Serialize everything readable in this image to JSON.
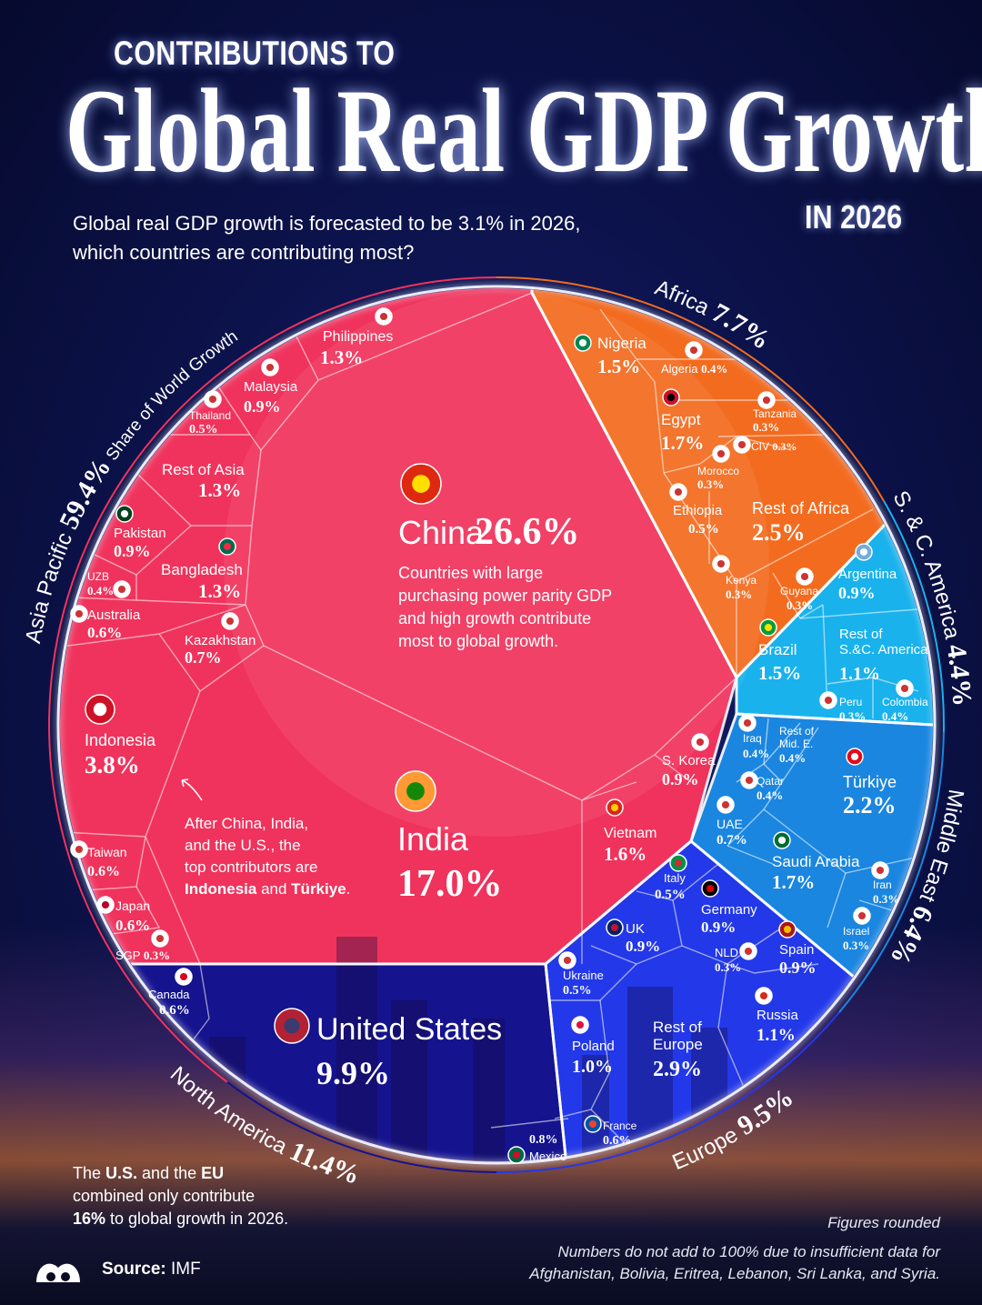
{
  "header": {
    "kicker": "CONTRIBUTIONS TO",
    "title": "Global Real GDP Growth",
    "year": "IN 2026",
    "subtitle_line1": "Global real GDP growth is forecasted to be 3.1% in 2026,",
    "subtitle_line2": "which countries are contributing most?"
  },
  "chart_data": {
    "type": "treemap",
    "subtype": "voronoi",
    "unit": "% share of world growth",
    "regions": [
      {
        "id": "asia",
        "name": "Asia Pacific",
        "value": "59.4%",
        "suffix": "Share of World Growth",
        "color": "#f0335c"
      },
      {
        "id": "africa",
        "name": "Africa",
        "value": "7.7%",
        "color": "#f36b1f"
      },
      {
        "id": "sca",
        "name": "S. & C. America",
        "value": "4.4%",
        "color": "#19b2ec"
      },
      {
        "id": "me",
        "name": "Middle East",
        "value": "6.4%",
        "color": "#1a86e0"
      },
      {
        "id": "europe",
        "name": "Europe",
        "value": "9.5%",
        "color": "#2338e8"
      },
      {
        "id": "na",
        "name": "North America",
        "value": "11.4%",
        "color": "#15138e"
      }
    ],
    "countries": [
      {
        "id": "china",
        "region": "asia",
        "name": "China",
        "value": 26.6
      },
      {
        "id": "india",
        "region": "asia",
        "name": "India",
        "value": 17.0
      },
      {
        "id": "indonesia",
        "region": "asia",
        "name": "Indonesia",
        "value": 3.8
      },
      {
        "id": "vietnam",
        "region": "asia",
        "name": "Vietnam",
        "value": 1.6
      },
      {
        "id": "philippines",
        "region": "asia",
        "name": "Philippines",
        "value": 1.3
      },
      {
        "id": "rest_asia",
        "region": "asia",
        "name": "Rest of Asia",
        "value": 1.3
      },
      {
        "id": "bangladesh",
        "region": "asia",
        "name": "Bangladesh",
        "value": 1.3
      },
      {
        "id": "malaysia",
        "region": "asia",
        "name": "Malaysia",
        "value": 0.9
      },
      {
        "id": "pakistan",
        "region": "asia",
        "name": "Pakistan",
        "value": 0.9
      },
      {
        "id": "skorea",
        "region": "asia",
        "name": "S. Korea",
        "value": 0.9
      },
      {
        "id": "kazakhstan",
        "region": "asia",
        "name": "Kazakhstan",
        "value": 0.7
      },
      {
        "id": "australia",
        "region": "asia",
        "name": "Australia",
        "value": 0.6
      },
      {
        "id": "taiwan",
        "region": "asia",
        "name": "Taiwan",
        "value": 0.6
      },
      {
        "id": "japan",
        "region": "asia",
        "name": "Japan",
        "value": 0.6
      },
      {
        "id": "thailand",
        "region": "asia",
        "name": "Thailand",
        "value": 0.5
      },
      {
        "id": "uzb",
        "region": "asia",
        "name": "UZB",
        "value": 0.4
      },
      {
        "id": "sgp",
        "region": "asia",
        "name": "SGP",
        "value": 0.3
      },
      {
        "id": "nigeria",
        "region": "africa",
        "name": "Nigeria",
        "value": 1.5
      },
      {
        "id": "algeria",
        "region": "africa",
        "name": "Algeria",
        "value": 0.4
      },
      {
        "id": "egypt",
        "region": "africa",
        "name": "Egypt",
        "value": 1.7
      },
      {
        "id": "tanzania",
        "region": "africa",
        "name": "Tanzania",
        "value": 0.3
      },
      {
        "id": "civ",
        "region": "africa",
        "name": "CIV",
        "value": 0.3
      },
      {
        "id": "morocco",
        "region": "africa",
        "name": "Morocco",
        "value": 0.3
      },
      {
        "id": "ethiopia",
        "region": "africa",
        "name": "Ethiopia",
        "value": 0.5
      },
      {
        "id": "rest_africa",
        "region": "africa",
        "name": "Rest of Africa",
        "value": 2.5
      },
      {
        "id": "kenya",
        "region": "africa",
        "name": "Kenya",
        "value": 0.3
      },
      {
        "id": "guyana",
        "region": "sca",
        "name": "Guyana",
        "value": 0.3
      },
      {
        "id": "argentina",
        "region": "sca",
        "name": "Argentina",
        "value": 0.9
      },
      {
        "id": "brazil",
        "region": "sca",
        "name": "Brazil",
        "value": 1.5
      },
      {
        "id": "rest_sca",
        "region": "sca",
        "name": "Rest of S.&C. America",
        "value": 1.1
      },
      {
        "id": "peru",
        "region": "sca",
        "name": "Peru",
        "value": 0.3
      },
      {
        "id": "colombia",
        "region": "sca",
        "name": "Colombia",
        "value": 0.4
      },
      {
        "id": "iraq",
        "region": "me",
        "name": "Iraq",
        "value": 0.4
      },
      {
        "id": "rest_me",
        "region": "me",
        "name": "Rest of Mid. E.",
        "value": 0.4
      },
      {
        "id": "qatar",
        "region": "me",
        "name": "Qatar",
        "value": 0.4
      },
      {
        "id": "turkiye",
        "region": "me",
        "name": "Türkiye",
        "value": 2.2
      },
      {
        "id": "uae",
        "region": "me",
        "name": "UAE",
        "value": 0.7
      },
      {
        "id": "saudi",
        "region": "me",
        "name": "Saudi Arabia",
        "value": 1.7
      },
      {
        "id": "iran",
        "region": "me",
        "name": "Iran",
        "value": 0.3
      },
      {
        "id": "israel",
        "region": "me",
        "name": "Israel",
        "value": 0.3
      },
      {
        "id": "italy",
        "region": "europe",
        "name": "Italy",
        "value": 0.5
      },
      {
        "id": "germany",
        "region": "europe",
        "name": "Germany",
        "value": 0.9
      },
      {
        "id": "uk",
        "region": "europe",
        "name": "UK",
        "value": 0.9
      },
      {
        "id": "nld",
        "region": "europe",
        "name": "NLD",
        "value": 0.3
      },
      {
        "id": "spain",
        "region": "europe",
        "name": "Spain",
        "value": 0.9
      },
      {
        "id": "ukraine",
        "region": "europe",
        "name": "Ukraine",
        "value": 0.5
      },
      {
        "id": "russia",
        "region": "europe",
        "name": "Russia",
        "value": 1.1
      },
      {
        "id": "poland",
        "region": "europe",
        "name": "Poland",
        "value": 1.0
      },
      {
        "id": "rest_europe",
        "region": "europe",
        "name": "Rest of Europe",
        "value": 2.9
      },
      {
        "id": "france",
        "region": "europe",
        "name": "France",
        "value": 0.6
      },
      {
        "id": "us",
        "region": "na",
        "name": "United States",
        "value": 9.9
      },
      {
        "id": "canada",
        "region": "na",
        "name": "Canada",
        "value": 0.6
      },
      {
        "id": "mexico",
        "region": "na",
        "name": "Mexico",
        "value": 0.8
      }
    ],
    "annotations": {
      "china_note": [
        "Countries with large",
        "purchasing power parity GDP",
        "and high growth contribute",
        "most to global growth."
      ],
      "india_note": [
        "After China, India,",
        "and the U.S., the",
        "top contributors are"
      ],
      "india_note_bold1": "Indonesia",
      "india_note_and": " and ",
      "india_note_bold2": "Türkiye",
      "india_note_end": "."
    }
  },
  "footer": {
    "note_pre": "The ",
    "note_bold1": "U.S.",
    "note_mid": " and the ",
    "note_bold2": "EU",
    "note_line2": "combined only contribute",
    "note_bold3": "16%",
    "note_end": " to global growth in 2026.",
    "source_label": "Source:",
    "source_value": "IMF",
    "figures_rounded": "Figures rounded",
    "disclaimer_line1": "Numbers do not add to 100% due to insufficient data for",
    "disclaimer_line2": "Afghanistan, Bolivia, Eritrea, Lebanon, Sri Lanka, and Syria."
  }
}
